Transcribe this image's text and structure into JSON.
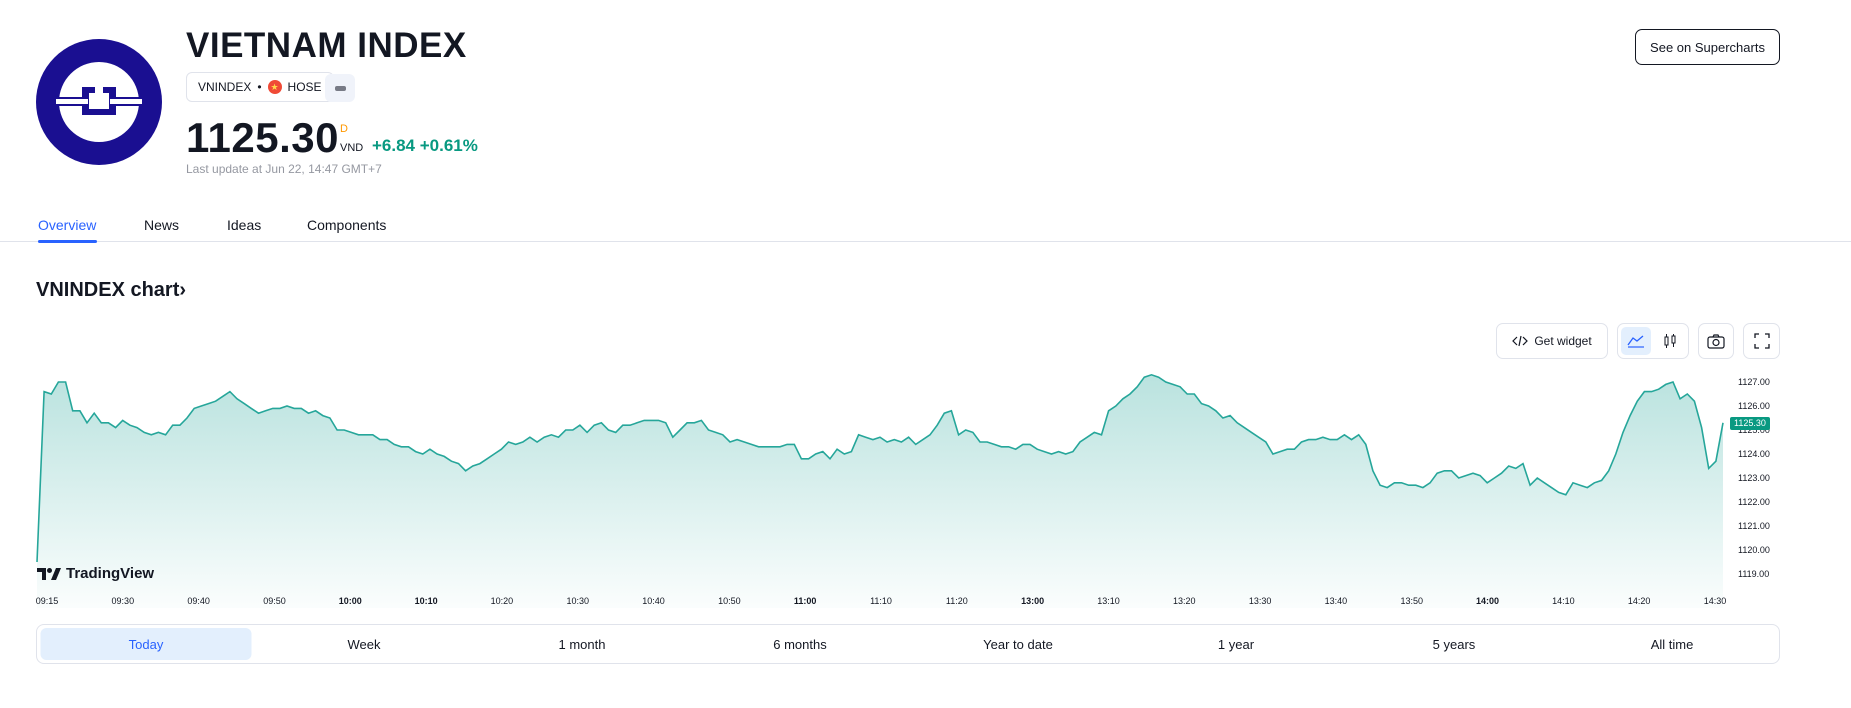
{
  "header": {
    "title": "VIETNAM INDEX",
    "symbol": "VNINDEX",
    "exchange": "HOSE",
    "price": "1125.30",
    "price_flag": "D",
    "currency": "VND",
    "change": "+6.84",
    "change_percent": "+0.61%",
    "last_update": "Last update at Jun 22, 14:47 GMT+7",
    "supercharts_label": "See on Supercharts"
  },
  "tabs": [
    {
      "label": "Overview",
      "active": true
    },
    {
      "label": "News"
    },
    {
      "label": "Ideas"
    },
    {
      "label": "Components"
    }
  ],
  "chart_section": {
    "title": "VNINDEX chart",
    "get_widget_label": "Get widget",
    "brand": "TradingView",
    "current_price_tag": "1125.30"
  },
  "ranges": [
    {
      "label": "Today",
      "active": true
    },
    {
      "label": "Week"
    },
    {
      "label": "1 month"
    },
    {
      "label": "6 months"
    },
    {
      "label": "Year to date"
    },
    {
      "label": "1 year"
    },
    {
      "label": "5 years"
    },
    {
      "label": "All time"
    }
  ],
  "colors": {
    "accent": "#2962ff",
    "up": "#089981",
    "logo_bg": "#1a0f91"
  },
  "chart_data": {
    "type": "area",
    "series": [
      {
        "values": [
          1119.5,
          1126.6,
          1126.5,
          1127.0,
          1127.0,
          1125.8,
          1125.8,
          1125.3,
          1125.7,
          1125.3,
          1125.3,
          1125.1,
          1125.4,
          1125.2,
          1125.1,
          1124.9,
          1124.8,
          1124.9,
          1124.8,
          1125.2,
          1125.2,
          1125.5,
          1125.9,
          1126.0,
          1126.1,
          1126.2,
          1126.4,
          1126.6,
          1126.3,
          1126.1,
          1125.9,
          1125.7,
          1125.8,
          1125.9,
          1125.9,
          1126.0,
          1125.9,
          1125.9,
          1125.7,
          1125.8,
          1125.6,
          1125.5,
          1125.0,
          1125.0,
          1124.9,
          1124.8,
          1124.8,
          1124.8,
          1124.6,
          1124.6,
          1124.4,
          1124.3,
          1124.3,
          1124.1,
          1124.0,
          1124.2,
          1124.0,
          1123.9,
          1123.7,
          1123.6,
          1123.3,
          1123.5,
          1123.6,
          1123.8,
          1124.0,
          1124.2,
          1124.5,
          1124.4,
          1124.5,
          1124.7,
          1124.5,
          1124.7,
          1124.8,
          1124.7,
          1125.0,
          1125.0,
          1125.2,
          1124.9,
          1125.2,
          1125.3,
          1125.0,
          1124.9,
          1125.2,
          1125.2,
          1125.3,
          1125.4,
          1125.4,
          1125.4,
          1125.3,
          1124.7,
          1125.0,
          1125.3,
          1125.3,
          1125.4,
          1125.0,
          1124.9,
          1124.8,
          1124.5,
          1124.6,
          1124.5,
          1124.4,
          1124.3,
          1124.3,
          1124.3,
          1124.3,
          1124.4,
          1124.4,
          1123.8,
          1123.8,
          1124.0,
          1124.1,
          1123.8,
          1124.2,
          1124.0,
          1124.1,
          1124.8,
          1124.7,
          1124.6,
          1124.7,
          1124.5,
          1124.6,
          1124.5,
          1124.7,
          1124.4,
          1124.6,
          1124.8,
          1125.2,
          1125.7,
          1125.8,
          1124.8,
          1125.0,
          1124.9,
          1124.5,
          1124.5,
          1124.4,
          1124.3,
          1124.3,
          1124.2,
          1124.4,
          1124.4,
          1124.2,
          1124.1,
          1124.0,
          1124.1,
          1124.0,
          1124.1,
          1124.5,
          1124.7,
          1124.9,
          1124.8,
          1125.8,
          1126.0,
          1126.3,
          1126.5,
          1126.8,
          1127.2,
          1127.3,
          1127.2,
          1127.0,
          1126.9,
          1126.8,
          1126.5,
          1126.5,
          1126.1,
          1126.0,
          1125.8,
          1125.5,
          1125.6,
          1125.3,
          1125.1,
          1124.9,
          1124.7,
          1124.5,
          1124.0,
          1124.1,
          1124.2,
          1124.2,
          1124.5,
          1124.6,
          1124.6,
          1124.7,
          1124.6,
          1124.6,
          1124.8,
          1124.6,
          1124.8,
          1124.4,
          1123.3,
          1122.7,
          1122.6,
          1122.8,
          1122.8,
          1122.7,
          1122.7,
          1122.6,
          1122.8,
          1123.2,
          1123.3,
          1123.3,
          1123.0,
          1123.1,
          1123.2,
          1123.1,
          1122.8,
          1123.0,
          1123.2,
          1123.5,
          1123.4,
          1123.6,
          1122.7,
          1123.0,
          1122.8,
          1122.6,
          1122.4,
          1122.3,
          1122.8,
          1122.7,
          1122.6,
          1122.8,
          1122.9,
          1123.3,
          1124.0,
          1124.9,
          1125.6,
          1126.2,
          1126.6,
          1126.6,
          1126.7,
          1126.9,
          1127.0,
          1126.3,
          1126.5,
          1126.2,
          1125.1,
          1123.4,
          1123.7,
          1125.3
        ]
      }
    ],
    "x_ticks": [
      "09:15",
      "09:30",
      "09:40",
      "09:50",
      "10:00",
      "10:10",
      "10:20",
      "10:30",
      "10:40",
      "10:50",
      "11:00",
      "11:10",
      "11:20",
      "13:00",
      "13:10",
      "13:20",
      "13:30",
      "13:40",
      "13:50",
      "14:00",
      "14:10",
      "14:20",
      "14:30"
    ],
    "x_bold_ticks": [
      "10:00",
      "10:10",
      "11:00",
      "13:00",
      "14:00"
    ],
    "y_ticks": [
      "1127.00",
      "1126.00",
      "1125.00",
      "1124.00",
      "1123.00",
      "1122.00",
      "1121.00",
      "1120.00",
      "1119.00"
    ],
    "ylim": [
      1119,
      1127.4
    ],
    "line_color": "#26a69a",
    "last_value": "1125.30"
  }
}
